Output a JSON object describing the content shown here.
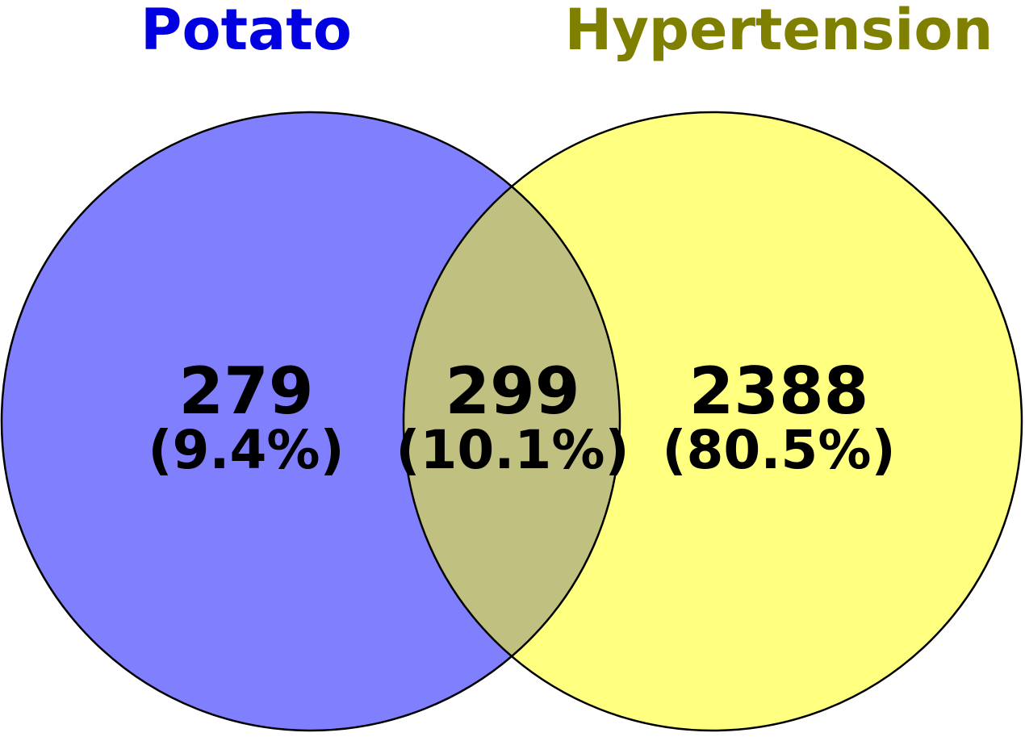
{
  "chart_data": {
    "type": "venn",
    "sets": [
      {
        "name": "Potato",
        "color": "#8080ff",
        "title_color": "#0000e0"
      },
      {
        "name": "Hypertension",
        "color": "#ffff80",
        "title_color": "#808000"
      }
    ],
    "overlap_color": "#c0c080",
    "regions": [
      {
        "value": 279,
        "share": 9.4,
        "share_label": "(9.4%)"
      },
      {
        "value": 299,
        "share": 10.1,
        "share_label": "(10.1%)"
      },
      {
        "value": 2388,
        "share": 80.5,
        "share_label": "(80.5%)"
      }
    ]
  }
}
